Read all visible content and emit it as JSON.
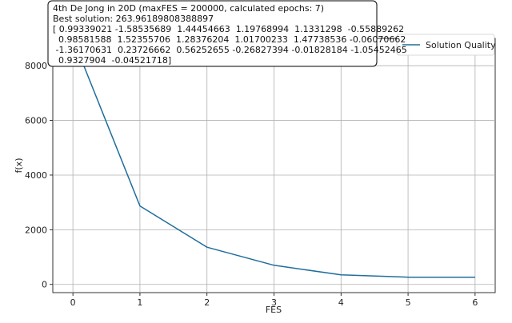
{
  "chart_data": {
    "type": "line",
    "xlabel": "FES",
    "ylabel": "f(x)",
    "xlim": [
      -0.3,
      6.3
    ],
    "ylim": [
      -300,
      9000
    ],
    "grid": true,
    "legend_position": "top-right",
    "x_ticks": [
      0,
      1,
      2,
      3,
      4,
      5,
      6
    ],
    "y_ticks": [
      0,
      2000,
      4000,
      6000,
      8000
    ],
    "x_tick_labels": [
      "0",
      "1",
      "2",
      "3",
      "4",
      "5",
      "6"
    ],
    "y_tick_labels": [
      "0",
      "2000",
      "4000",
      "6000",
      "8000"
    ],
    "series": [
      {
        "name": "Solution Quality",
        "color": "#1f6e9c",
        "x": [
          0,
          1,
          2,
          3,
          4,
          5,
          6
        ],
        "y": [
          9000,
          2870,
          1360,
          700,
          350,
          265,
          264
        ]
      }
    ],
    "annotation": {
      "lines": [
        "4th De Jong in 20D (maxFES = 200000, calculated epochs: 7)",
        "Best solution: 263.96189808388897",
        "[ 0.99339021 -1.58535689  1.44454663  1.19768994  1.1331298  -0.55889262",
        "  0.98581588  1.52355706  1.28376204  1.01700233  1.47738536 -0.06070662",
        " -1.36170631  0.23726662  0.56252655 -0.26827394 -0.01828184 -1.05452465",
        "  0.9327904  -0.04521718]"
      ]
    }
  }
}
